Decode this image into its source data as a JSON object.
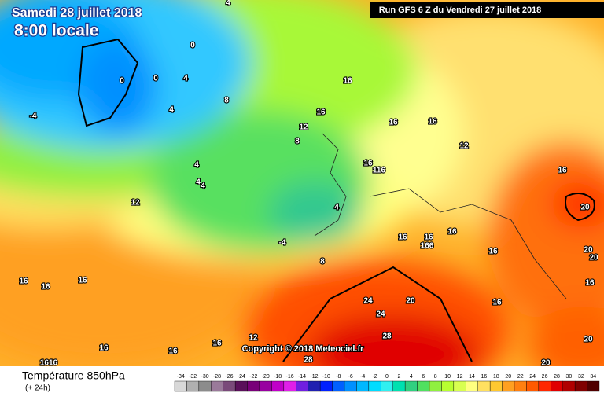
{
  "header": {
    "valid_date": "Samedi 28 juillet 2018",
    "local_time": "8:00 locale",
    "run": "Run GFS 6 Z du Vendredi 27 juillet 2018"
  },
  "footer": {
    "title": "Température 850hPa",
    "lead": "(+ 24h)",
    "copyright": "Copyright © 2018 Meteociel.fr"
  },
  "contour_labels": [
    "4",
    "0",
    "0",
    "0",
    "4",
    "4",
    "-4",
    "8",
    "4",
    "4",
    "4",
    "12",
    "12",
    "8",
    "16",
    "16",
    "16",
    "16",
    "12",
    "16",
    "116",
    "16",
    "16",
    "16",
    "166",
    "16",
    "16",
    "20",
    "20",
    "20",
    "24",
    "24",
    "20",
    "28",
    "28",
    "12",
    "16",
    "16",
    "16",
    "16",
    "16",
    "16",
    "1616",
    "20",
    "8",
    "4",
    "-4",
    "16",
    "20",
    "16"
  ],
  "legend": {
    "values": [
      -34,
      -32,
      -30,
      -28,
      -26,
      -24,
      -22,
      -20,
      -18,
      -16,
      -14,
      -12,
      -10,
      -8,
      -6,
      -4,
      -2,
      0,
      2,
      4,
      6,
      8,
      10,
      12,
      14,
      16,
      18,
      20,
      22,
      24,
      26,
      28,
      30,
      32,
      34
    ],
    "colors": [
      "#d8d8d8",
      "#b0b0b0",
      "#8c8c8c",
      "#9a7a9a",
      "#7a4a7a",
      "#5a105a",
      "#780078",
      "#9800a0",
      "#c000c8",
      "#e020e8",
      "#7020e0",
      "#2020b0",
      "#0020ff",
      "#0060ff",
      "#0090ff",
      "#00b8ff",
      "#00dcff",
      "#30f0f0",
      "#00e0b0",
      "#30d080",
      "#50e060",
      "#90f040",
      "#b8ff30",
      "#d8ff50",
      "#ffff80",
      "#ffe060",
      "#ffc830",
      "#ffa020",
      "#ff8010",
      "#ff5a00",
      "#ff2800",
      "#e00000",
      "#b00000",
      "#800000",
      "#500000"
    ]
  }
}
